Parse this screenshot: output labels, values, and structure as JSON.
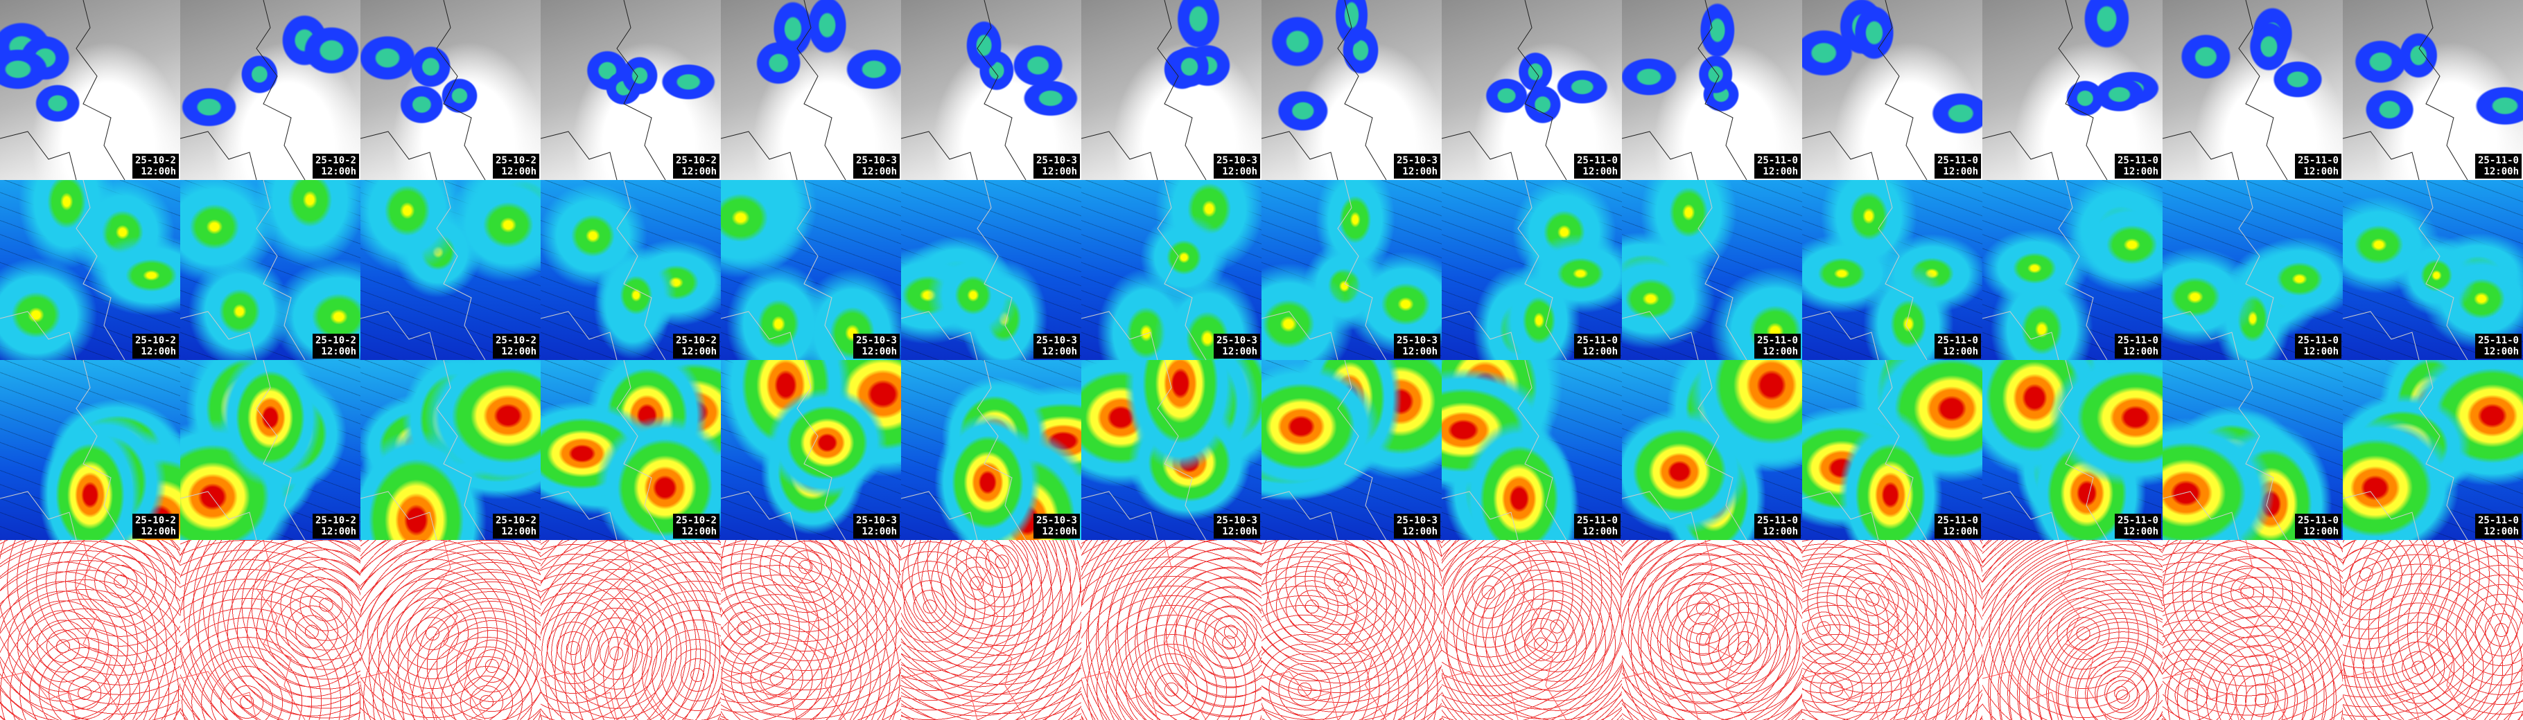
{
  "rows": [
    {
      "tiles": [
        {
          "date": "25-10-2",
          "time": "12:00h"
        },
        {
          "date": "25-10-2",
          "time": "12:00h"
        },
        {
          "date": "25-10-2",
          "time": "12:00h"
        },
        {
          "date": "25-10-2",
          "time": "12:00h"
        },
        {
          "date": "25-10-3",
          "time": "12:00h"
        },
        {
          "date": "25-10-3",
          "time": "12:00h"
        },
        {
          "date": "25-10-3",
          "time": "12:00h"
        },
        {
          "date": "25-10-3",
          "time": "12:00h"
        },
        {
          "date": "25-11-0",
          "time": "12:00h"
        },
        {
          "date": "25-11-0",
          "time": "12:00h"
        },
        {
          "date": "25-11-0",
          "time": "12:00h"
        },
        {
          "date": "25-11-0",
          "time": "12:00h"
        },
        {
          "date": "25-11-0",
          "time": "12:00h"
        },
        {
          "date": "25-11-0",
          "time": "12:00h"
        }
      ]
    },
    {
      "tiles": [
        {
          "date": "25-10-2",
          "time": "12:00h"
        },
        {
          "date": "25-10-2",
          "time": "12:00h"
        },
        {
          "date": "25-10-2",
          "time": "12:00h"
        },
        {
          "date": "25-10-2",
          "time": "12:00h"
        },
        {
          "date": "25-10-3",
          "time": "12:00h"
        },
        {
          "date": "25-10-3",
          "time": "12:00h"
        },
        {
          "date": "25-10-3",
          "time": "12:00h"
        },
        {
          "date": "25-10-3",
          "time": "12:00h"
        },
        {
          "date": "25-11-0",
          "time": "12:00h"
        },
        {
          "date": "25-11-0",
          "time": "12:00h"
        },
        {
          "date": "25-11-0",
          "time": "12:00h"
        },
        {
          "date": "25-11-0",
          "time": "12:00h"
        },
        {
          "date": "25-11-0",
          "time": "12:00h"
        },
        {
          "date": "25-11-0",
          "time": "12:00h"
        }
      ]
    },
    {
      "tiles": [
        {
          "date": "25-10-2",
          "time": "12:00h"
        },
        {
          "date": "25-10-2",
          "time": "12:00h"
        },
        {
          "date": "25-10-2",
          "time": "12:00h"
        },
        {
          "date": "25-10-2",
          "time": "12:00h"
        },
        {
          "date": "25-10-3",
          "time": "12:00h"
        },
        {
          "date": "25-10-3",
          "time": "12:00h"
        },
        {
          "date": "25-10-3",
          "time": "12:00h"
        },
        {
          "date": "25-10-3",
          "time": "12:00h"
        },
        {
          "date": "25-11-0",
          "time": "12:00h"
        },
        {
          "date": "25-11-0",
          "time": "12:00h"
        },
        {
          "date": "25-11-0",
          "time": "12:00h"
        },
        {
          "date": "25-11-0",
          "time": "12:00h"
        },
        {
          "date": "25-11-0",
          "time": "12:00h"
        },
        {
          "date": "25-11-0",
          "time": "12:00h"
        }
      ]
    }
  ]
}
